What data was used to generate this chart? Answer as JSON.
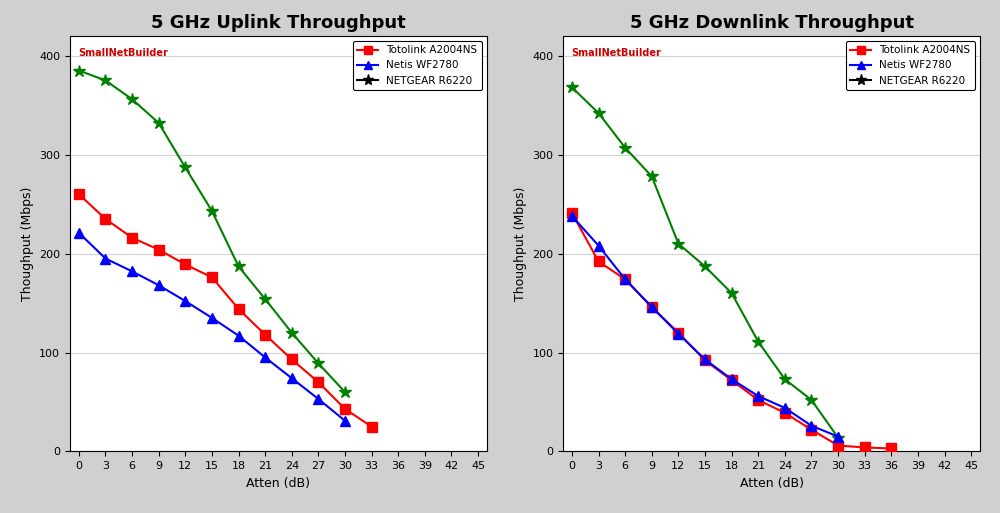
{
  "uplink_title": "5 GHz Uplink Throughput",
  "downlink_title": "5 GHz Downlink Throughput",
  "xlabel": "Atten (dB)",
  "ylabel": "Thoughput (Mbps)",
  "uplink": {
    "atten": [
      0,
      3,
      6,
      9,
      12,
      15,
      18,
      21,
      24,
      27,
      30,
      33,
      36,
      39,
      42,
      45
    ],
    "totolink": [
      260,
      235,
      216,
      204,
      189,
      176,
      144,
      118,
      93,
      70,
      43,
      25,
      null,
      null,
      null,
      null
    ],
    "netis": [
      221,
      195,
      182,
      168,
      152,
      135,
      117,
      95,
      74,
      53,
      31,
      null,
      null,
      null,
      null,
      null
    ],
    "netgear": [
      385,
      375,
      356,
      332,
      287,
      243,
      187,
      154,
      120,
      89,
      60,
      null,
      null,
      null,
      null,
      null
    ]
  },
  "downlink": {
    "atten": [
      0,
      3,
      6,
      9,
      12,
      15,
      18,
      21,
      24,
      27,
      30,
      33,
      36,
      39,
      42,
      45
    ],
    "totolink": [
      241,
      192,
      174,
      146,
      120,
      92,
      72,
      52,
      39,
      22,
      6,
      4,
      3,
      null,
      null,
      null
    ],
    "netis": [
      238,
      208,
      174,
      146,
      119,
      93,
      73,
      56,
      44,
      26,
      15,
      null,
      null,
      null,
      null,
      null
    ],
    "netgear": [
      368,
      342,
      307,
      278,
      210,
      187,
      160,
      111,
      73,
      52,
      14,
      null,
      null,
      null,
      null,
      null
    ]
  },
  "colors": {
    "totolink": "#ff0000",
    "netis": "#0000ff",
    "netgear": "#008000"
  },
  "legend_labels": [
    "Totolink A2004NS",
    "Netis WF2780",
    "NETGEAR R6220"
  ],
  "ylim": [
    0,
    420
  ],
  "yticks": [
    0,
    100,
    200,
    300,
    400
  ],
  "uplink_xlim": [
    0,
    45
  ],
  "downlink_xlim": [
    0,
    45
  ],
  "xticks": [
    0,
    3,
    6,
    9,
    12,
    15,
    18,
    21,
    24,
    27,
    30,
    33,
    36,
    39,
    42,
    45
  ]
}
